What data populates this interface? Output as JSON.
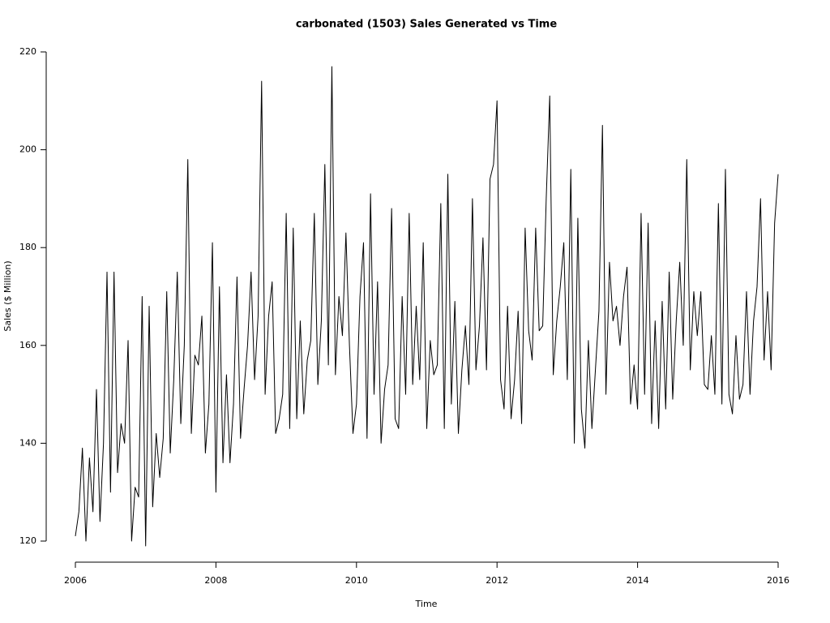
{
  "chart_data": {
    "type": "line",
    "title": "carbonated (1503) Sales Generated vs Time",
    "x_label": "Time",
    "y_label": "Sales ($ Million)",
    "color": "#000000",
    "xlim": [
      2006,
      2016
    ],
    "xticks": [
      2006,
      2008,
      2010,
      2012,
      2014,
      2016
    ],
    "ylim": [
      120,
      220
    ],
    "yticks": [
      120,
      140,
      160,
      180,
      200,
      220
    ],
    "x": [
      2006,
      2006.05,
      2006.1,
      2006.15,
      2006.2,
      2006.25,
      2006.3,
      2006.35,
      2006.4,
      2006.45,
      2006.5,
      2006.55,
      2006.6,
      2006.65,
      2006.7,
      2006.75,
      2006.8,
      2006.85,
      2006.9,
      2006.95,
      2007,
      2007.05,
      2007.1,
      2007.15,
      2007.2,
      2007.25,
      2007.3,
      2007.35,
      2007.4,
      2007.45,
      2007.5,
      2007.55,
      2007.6,
      2007.65,
      2007.7,
      2007.75,
      2007.8,
      2007.85,
      2007.9,
      2007.95,
      2008,
      2008.05,
      2008.1,
      2008.15,
      2008.2,
      2008.25,
      2008.3,
      2008.35,
      2008.4,
      2008.45,
      2008.5,
      2008.55,
      2008.6,
      2008.65,
      2008.7,
      2008.75,
      2008.8,
      2008.85,
      2008.9,
      2008.95,
      2009,
      2009.05,
      2009.1,
      2009.15,
      2009.2,
      2009.25,
      2009.3,
      2009.35,
      2009.4,
      2009.45,
      2009.5,
      2009.55,
      2009.6,
      2009.65,
      2009.7,
      2009.75,
      2009.8,
      2009.85,
      2009.9,
      2009.95,
      2010,
      2010.05,
      2010.1,
      2010.15,
      2010.2,
      2010.25,
      2010.3,
      2010.35,
      2010.4,
      2010.45,
      2010.5,
      2010.55,
      2010.6,
      2010.65,
      2010.7,
      2010.75,
      2010.8,
      2010.85,
      2010.9,
      2010.95,
      2011,
      2011.05,
      2011.1,
      2011.15,
      2011.2,
      2011.25,
      2011.3,
      2011.35,
      2011.4,
      2011.45,
      2011.5,
      2011.55,
      2011.6,
      2011.65,
      2011.7,
      2011.75,
      2011.8,
      2011.85,
      2011.9,
      2011.95,
      2012,
      2012.05,
      2012.1,
      2012.15,
      2012.2,
      2012.25,
      2012.3,
      2012.35,
      2012.4,
      2012.45,
      2012.5,
      2012.55,
      2012.6,
      2012.65,
      2012.7,
      2012.75,
      2012.8,
      2012.85,
      2012.9,
      2012.95,
      2013,
      2013.05,
      2013.1,
      2013.15,
      2013.2,
      2013.25,
      2013.3,
      2013.35,
      2013.4,
      2013.45,
      2013.5,
      2013.55,
      2013.6,
      2013.65,
      2013.7,
      2013.75,
      2013.8,
      2013.85,
      2013.9,
      2013.95,
      2014,
      2014.05,
      2014.1,
      2014.15,
      2014.2,
      2014.25,
      2014.3,
      2014.35,
      2014.4,
      2014.45,
      2014.5,
      2014.55,
      2014.6,
      2014.65,
      2014.7,
      2014.75,
      2014.8,
      2014.85,
      2014.9,
      2014.95,
      2015,
      2015.05,
      2015.1,
      2015.15,
      2015.2,
      2015.25,
      2015.3,
      2015.35,
      2015.4,
      2015.45,
      2015.5,
      2015.55,
      2015.6,
      2015.65,
      2015.7,
      2015.75,
      2015.8,
      2015.85,
      2015.9,
      2015.95,
      2016
    ],
    "values": [
      121,
      126,
      139,
      120,
      137,
      126,
      151,
      124,
      140,
      175,
      130,
      175,
      134,
      144,
      140,
      161,
      120,
      131,
      129,
      170,
      119,
      168,
      127,
      142,
      133,
      141,
      171,
      138,
      153,
      175,
      144,
      160,
      198,
      142,
      158,
      156,
      166,
      138,
      148,
      181,
      130,
      172,
      136,
      154,
      136,
      148,
      174,
      141,
      151,
      160,
      175,
      153,
      166,
      214,
      150,
      166,
      173,
      142,
      145,
      150,
      187,
      143,
      184,
      145,
      165,
      146,
      157,
      161,
      187,
      152,
      165,
      197,
      156,
      217,
      154,
      170,
      162,
      183,
      160,
      142,
      148,
      170,
      181,
      141,
      191,
      150,
      173,
      140,
      151,
      156,
      188,
      145,
      143,
      170,
      150,
      187,
      152,
      168,
      153,
      181,
      143,
      161,
      154,
      156,
      189,
      143,
      195,
      148,
      169,
      142,
      155,
      164,
      152,
      190,
      155,
      164,
      182,
      155,
      194,
      197,
      210,
      153,
      147,
      168,
      145,
      153,
      167,
      144,
      184,
      163,
      157,
      184,
      163,
      164,
      190,
      211,
      154,
      165,
      172,
      181,
      153,
      196,
      140,
      186,
      147,
      139,
      161,
      143,
      155,
      167,
      205,
      150,
      177,
      165,
      168,
      160,
      170,
      176,
      148,
      156,
      147,
      187,
      150,
      185,
      144,
      165,
      143,
      169,
      147,
      175,
      149,
      165,
      177,
      160,
      198,
      155,
      171,
      162,
      171,
      152,
      151,
      162,
      150,
      189,
      148,
      196,
      150,
      146,
      162,
      149,
      152,
      171,
      150,
      165,
      172,
      190,
      157,
      171,
      155,
      185,
      195
    ]
  }
}
